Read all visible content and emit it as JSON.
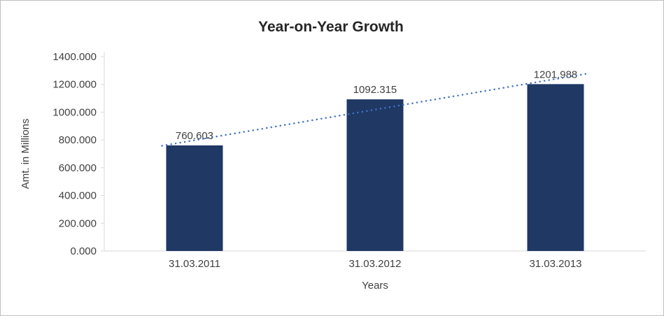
{
  "chart_data": {
    "type": "bar",
    "title": "Year-on-Year Growth",
    "xlabel": "Years",
    "ylabel": "Amt. in Millions",
    "categories": [
      "31.03.2011",
      "31.03.2012",
      "31.03.2013"
    ],
    "values": [
      760.603,
      1092.315,
      1201.988
    ],
    "data_labels": [
      "760.603",
      "1092.315",
      "1201.988"
    ],
    "ylim": [
      0,
      1400
    ],
    "ytick_step": 200,
    "ytick_labels": [
      "0.000",
      "200.000",
      "400.000",
      "600.000",
      "800.000",
      "1000.000",
      "1200.000",
      "1400.000"
    ],
    "grid": false,
    "legend": "none",
    "trendline": {
      "type": "linear",
      "style": "dotted",
      "color": "#4472C4"
    },
    "colors": {
      "bar": "#1F3864",
      "axis": "#D9D9D9",
      "text": "#404040",
      "title": "#262626",
      "frame_border": "#BFBFBF",
      "background": "#FFFFFF"
    }
  }
}
